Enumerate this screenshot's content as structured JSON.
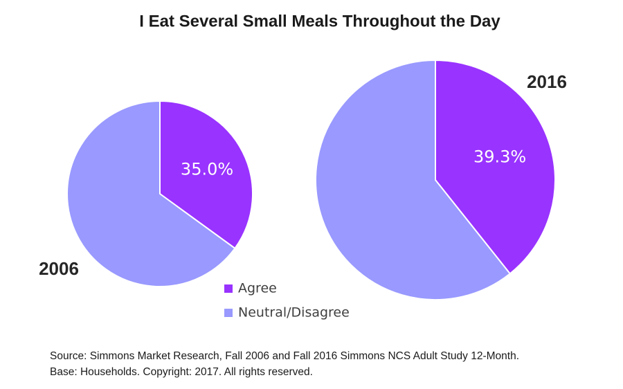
{
  "title": "I Eat Several Small Meals Throughout the Day",
  "source": [
    "Source:  Simmons Market Research, Fall 2006 and Fall 2016 Simmons NCS Adult Study 12-Month.",
    "Base:  Households.  Copyright:  2017.  All rights reserved."
  ],
  "chart_data": [
    {
      "type": "pie",
      "title": "2006",
      "categories": [
        "Agree",
        "Neutral/Disagree"
      ],
      "values": [
        35.0,
        65.0
      ],
      "value_labels": [
        "35.0%",
        null
      ],
      "colors": [
        "#9933ff",
        "#9999ff"
      ]
    },
    {
      "type": "pie",
      "title": "2016",
      "categories": [
        "Agree",
        "Neutral/Disagree"
      ],
      "values": [
        39.3,
        60.7
      ],
      "value_labels": [
        "39.3%",
        null
      ],
      "colors": [
        "#9933ff",
        "#9999ff"
      ]
    }
  ]
}
